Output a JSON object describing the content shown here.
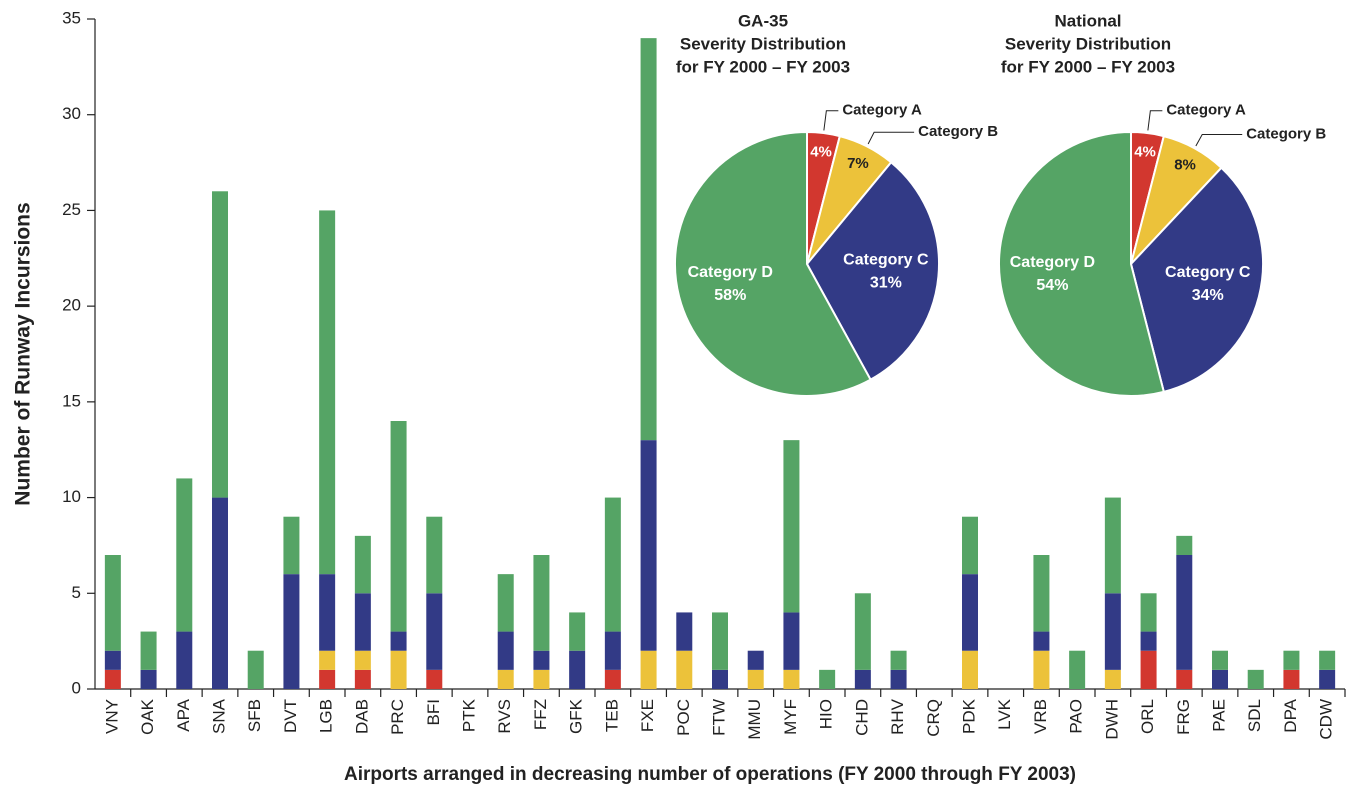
{
  "chart_data": [
    {
      "type": "bar",
      "stacked": true,
      "y_label": "Number of Runway Incursions",
      "x_label": "Airports arranged in decreasing number of operations (FY 2000 through FY 2003)",
      "categories": [
        "VNY",
        "OAK",
        "APA",
        "SNA",
        "SFB",
        "DVT",
        "LGB",
        "DAB",
        "PRC",
        "BFI",
        "PTK",
        "RVS",
        "FFZ",
        "GFK",
        "TEB",
        "FXE",
        "POC",
        "FTW",
        "MMU",
        "MYF",
        "HIO",
        "CHD",
        "RHV",
        "CRQ",
        "PDK",
        "LVK",
        "VRB",
        "PAO",
        "DWH",
        "ORL",
        "FRG",
        "PAE",
        "SDL",
        "DPA",
        "CDW"
      ],
      "series": [
        {
          "color": "#d2372f",
          "values": [
            1,
            0,
            0,
            0,
            0,
            0,
            1,
            1,
            0,
            1,
            0,
            0,
            0,
            0,
            1,
            0,
            0,
            0,
            0,
            0,
            0,
            0,
            0,
            0,
            0,
            0,
            0,
            0,
            0,
            2,
            1,
            0,
            0,
            1,
            0
          ]
        },
        {
          "color": "#ecc23a",
          "values": [
            0,
            0,
            0,
            0,
            0,
            0,
            1,
            1,
            2,
            0,
            0,
            1,
            1,
            0,
            0,
            2,
            2,
            0,
            1,
            1,
            0,
            0,
            0,
            0,
            2,
            0,
            2,
            0,
            1,
            0,
            0,
            0,
            0,
            0,
            0
          ]
        },
        {
          "color": "#323a86",
          "values": [
            1,
            1,
            3,
            10,
            0,
            6,
            4,
            3,
            1,
            4,
            0,
            2,
            1,
            2,
            2,
            11,
            2,
            1,
            1,
            3,
            0,
            1,
            1,
            0,
            4,
            0,
            1,
            0,
            4,
            1,
            6,
            1,
            0,
            0,
            1
          ]
        },
        {
          "color": "#55a465",
          "values": [
            5,
            2,
            8,
            16,
            2,
            3,
            19,
            3,
            11,
            4,
            0,
            3,
            5,
            2,
            7,
            21,
            0,
            3,
            0,
            9,
            1,
            4,
            1,
            0,
            3,
            0,
            4,
            2,
            5,
            2,
            1,
            1,
            1,
            1,
            1
          ]
        }
      ],
      "ylim": [
        0,
        35
      ],
      "yticks": [
        0,
        5,
        10,
        15,
        20,
        25,
        30,
        35
      ]
    },
    {
      "type": "pie",
      "title": [
        "GA-35",
        "Severity Distribution",
        "for FY 2000 – FY 2003"
      ],
      "categories": [
        "Category A",
        "Category B",
        "Category C",
        "Category D"
      ],
      "values": [
        4,
        7,
        31,
        58
      ],
      "value_labels": [
        "4%",
        "7%",
        "31%",
        "58%"
      ],
      "colors": [
        "#d2372f",
        "#ecc23a",
        "#323a86",
        "#55a465"
      ]
    },
    {
      "type": "pie",
      "title": [
        "National",
        "Severity Distribution",
        "for FY 2000 – FY 2003"
      ],
      "categories": [
        "Category A",
        "Category B",
        "Category C",
        "Category D"
      ],
      "values": [
        4,
        8,
        34,
        54
      ],
      "value_labels": [
        "4%",
        "8%",
        "34%",
        "54%"
      ],
      "colors": [
        "#d2372f",
        "#ecc23a",
        "#323a86",
        "#55a465"
      ]
    }
  ]
}
